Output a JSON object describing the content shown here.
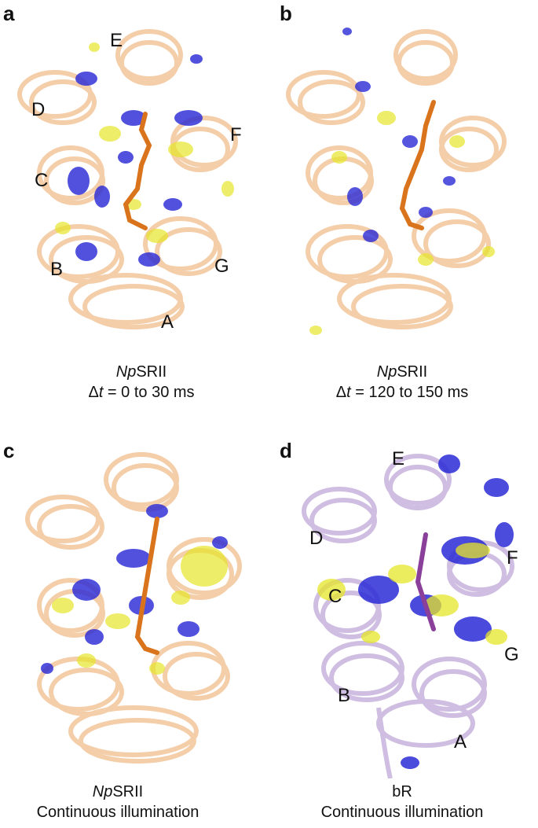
{
  "panels": [
    {
      "letter": "a",
      "helix_labels": [
        "E",
        "D",
        "F",
        "C",
        "B",
        "G",
        "A"
      ],
      "caption_italic": "Np",
      "caption_main": "SRII",
      "caption_delta": "Δ",
      "caption_t": "t",
      "caption_rest": " = 0 to 30 ms"
    },
    {
      "letter": "b",
      "caption_italic": "Np",
      "caption_main": "SRII",
      "caption_delta": "Δ",
      "caption_t": "t",
      "caption_rest": " = 120 to 150 ms"
    },
    {
      "letter": "c",
      "caption_italic": "Np",
      "caption_main": "SRII",
      "caption_line2": "Continuous illumination"
    },
    {
      "letter": "d",
      "helix_labels": [
        "E",
        "D",
        "F",
        "C",
        "G",
        "B",
        "A"
      ],
      "caption_main": "bR",
      "caption_line2": "Continuous illumination"
    }
  ],
  "colors": {
    "ribbon_npsrii": "#f3c8a0",
    "ribbon_br": "#cdbbe0",
    "density_negative": "#2b2bd6",
    "density_positive": "#e6e62a",
    "retinal_npsrii": "#d9731c",
    "retinal_br": "#8a3f9a"
  }
}
